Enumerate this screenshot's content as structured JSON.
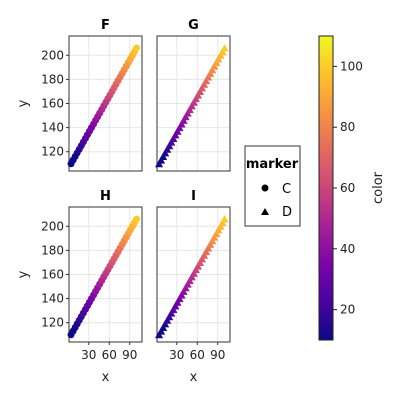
{
  "chart_data": {
    "type": "scatter",
    "xlabel": "x",
    "ylabel": "y",
    "xlim": [
      1,
      108
    ],
    "ylim": [
      104,
      216
    ],
    "xticks": [
      30,
      60,
      90
    ],
    "yticks": [
      120,
      140,
      160,
      180,
      200
    ],
    "grid": true,
    "panels": [
      {
        "title": "F",
        "marker": "circle",
        "x_start": 4,
        "x_end": 100,
        "n": 33,
        "y_intercept": 110,
        "y_slope": 1
      },
      {
        "title": "G",
        "marker": "triangle",
        "x_start": 4,
        "x_end": 100,
        "n": 33,
        "y_intercept": 110,
        "y_slope": 1
      },
      {
        "title": "H",
        "marker": "circle",
        "x_start": 4,
        "x_end": 100,
        "n": 33,
        "y_intercept": 110,
        "y_slope": 1
      },
      {
        "title": "I",
        "marker": "triangle",
        "x_start": 4,
        "x_end": 100,
        "n": 33,
        "y_intercept": 110,
        "y_slope": 1
      }
    ],
    "legend": {
      "title": "marker",
      "placement": "right",
      "entries": [
        {
          "label": "C",
          "marker": "circle"
        },
        {
          "label": "D",
          "marker": "triangle"
        }
      ]
    },
    "colorbar": {
      "label": "color",
      "colormap": "plasma",
      "range": [
        10,
        110
      ],
      "ticks": [
        20,
        40,
        60,
        80,
        100
      ]
    }
  }
}
